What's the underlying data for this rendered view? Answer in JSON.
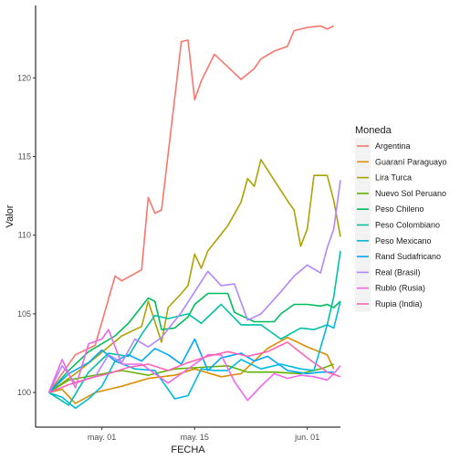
{
  "chart_data": {
    "type": "line",
    "xlabel": "FECHA",
    "ylabel": "Valor",
    "x_range": [
      "2020-04-21",
      "2020-06-06"
    ],
    "ylim": [
      97.8,
      124.6
    ],
    "y_ticks": [
      100,
      105,
      110,
      115,
      120
    ],
    "x_ticks": [
      {
        "date": "2020-05-01",
        "label": "may. 01"
      },
      {
        "date": "2020-05-15",
        "label": "may. 15"
      },
      {
        "date": "2020-06-01",
        "label": "jun. 01"
      }
    ],
    "grid": false,
    "legend": {
      "title": "Moneda",
      "position": "right"
    },
    "series": [
      {
        "name": "Argentina",
        "color": "#F8766D",
        "points": [
          [
            "2020-04-23",
            100.0
          ],
          [
            "2020-04-27",
            102.4
          ],
          [
            "2020-04-30",
            103.0
          ],
          [
            "2020-05-03",
            107.4
          ],
          [
            "2020-05-04",
            107.1
          ],
          [
            "2020-05-07",
            107.8
          ],
          [
            "2020-05-08",
            112.4
          ],
          [
            "2020-05-09",
            111.4
          ],
          [
            "2020-05-10",
            111.6
          ],
          [
            "2020-05-13",
            122.3
          ],
          [
            "2020-05-14",
            122.4
          ],
          [
            "2020-05-15",
            118.6
          ],
          [
            "2020-05-16",
            119.8
          ],
          [
            "2020-05-18",
            121.5
          ],
          [
            "2020-05-22",
            119.9
          ],
          [
            "2020-05-24",
            120.6
          ],
          [
            "2020-05-25",
            121.2
          ],
          [
            "2020-05-27",
            121.7
          ],
          [
            "2020-05-29",
            122.0
          ],
          [
            "2020-05-30",
            123.0
          ],
          [
            "2020-06-01",
            123.2
          ],
          [
            "2020-06-03",
            123.3
          ],
          [
            "2020-06-04",
            123.1
          ],
          [
            "2020-06-05",
            123.3
          ]
        ]
      },
      {
        "name": "Guaraní Paraguayo",
        "color": "#DB8E00",
        "points": [
          [
            "2020-04-23",
            100.0
          ],
          [
            "2020-04-25",
            100.2
          ],
          [
            "2020-04-27",
            99.3
          ],
          [
            "2020-04-30",
            100.0
          ],
          [
            "2020-05-04",
            100.4
          ],
          [
            "2020-05-08",
            100.9
          ],
          [
            "2020-05-12",
            101.1
          ],
          [
            "2020-05-15",
            101.5
          ],
          [
            "2020-05-19",
            101.0
          ],
          [
            "2020-05-22",
            101.2
          ],
          [
            "2020-05-26",
            102.8
          ],
          [
            "2020-05-29",
            103.5
          ],
          [
            "2020-06-01",
            102.9
          ],
          [
            "2020-06-04",
            102.4
          ],
          [
            "2020-06-05",
            101.5
          ]
        ]
      },
      {
        "name": "Lira Turca",
        "color": "#AEA200",
        "points": [
          [
            "2020-04-23",
            100.0
          ],
          [
            "2020-04-27",
            101.2
          ],
          [
            "2020-04-30",
            102.2
          ],
          [
            "2020-05-04",
            103.6
          ],
          [
            "2020-05-07",
            104.2
          ],
          [
            "2020-05-08",
            105.8
          ],
          [
            "2020-05-10",
            103.2
          ],
          [
            "2020-05-11",
            105.4
          ],
          [
            "2020-05-13",
            106.3
          ],
          [
            "2020-05-14",
            106.8
          ],
          [
            "2020-05-15",
            108.8
          ],
          [
            "2020-05-16",
            107.9
          ],
          [
            "2020-05-17",
            109.0
          ],
          [
            "2020-05-20",
            110.6
          ],
          [
            "2020-05-22",
            112.1
          ],
          [
            "2020-05-23",
            113.6
          ],
          [
            "2020-05-24",
            113.1
          ],
          [
            "2020-05-25",
            114.8
          ],
          [
            "2020-05-29",
            112.2
          ],
          [
            "2020-05-30",
            111.6
          ],
          [
            "2020-05-31",
            109.3
          ],
          [
            "2020-06-01",
            110.4
          ],
          [
            "2020-06-02",
            113.8
          ],
          [
            "2020-06-04",
            113.8
          ],
          [
            "2020-06-05",
            112.2
          ],
          [
            "2020-06-06",
            109.9
          ]
        ]
      },
      {
        "name": "Nuevo Sol Peruano",
        "color": "#64B200",
        "points": [
          [
            "2020-04-23",
            100.0
          ],
          [
            "2020-04-26",
            100.8
          ],
          [
            "2020-04-30",
            101.1
          ],
          [
            "2020-05-04",
            101.4
          ],
          [
            "2020-05-08",
            101.1
          ],
          [
            "2020-05-12",
            101.5
          ],
          [
            "2020-05-16",
            101.6
          ],
          [
            "2020-05-20",
            101.7
          ],
          [
            "2020-05-23",
            101.3
          ],
          [
            "2020-05-27",
            101.3
          ],
          [
            "2020-05-31",
            101.2
          ],
          [
            "2020-06-03",
            101.5
          ],
          [
            "2020-06-05",
            101.8
          ]
        ]
      },
      {
        "name": "Peso Chileno",
        "color": "#00BD5C",
        "points": [
          [
            "2020-04-23",
            100.0
          ],
          [
            "2020-04-26",
            101.4
          ],
          [
            "2020-04-29",
            102.6
          ],
          [
            "2020-05-03",
            103.6
          ],
          [
            "2020-05-05",
            104.4
          ],
          [
            "2020-05-08",
            106.0
          ],
          [
            "2020-05-09",
            105.8
          ],
          [
            "2020-05-10",
            104.0
          ],
          [
            "2020-05-12",
            104.1
          ],
          [
            "2020-05-14",
            104.8
          ],
          [
            "2020-05-15",
            105.6
          ],
          [
            "2020-05-17",
            106.3
          ],
          [
            "2020-05-20",
            106.3
          ],
          [
            "2020-05-21",
            105.1
          ],
          [
            "2020-05-24",
            104.5
          ],
          [
            "2020-05-27",
            104.5
          ],
          [
            "2020-05-28",
            105.0
          ],
          [
            "2020-05-30",
            105.6
          ],
          [
            "2020-06-01",
            105.6
          ],
          [
            "2020-06-03",
            105.5
          ],
          [
            "2020-06-04",
            105.6
          ],
          [
            "2020-06-05",
            105.4
          ],
          [
            "2020-06-06",
            105.8
          ]
        ]
      },
      {
        "name": "Peso Colombiano",
        "color": "#00C1A7",
        "points": [
          [
            "2020-04-23",
            100.0
          ],
          [
            "2020-04-26",
            99.2
          ],
          [
            "2020-04-29",
            101.3
          ],
          [
            "2020-05-02",
            102.5
          ],
          [
            "2020-05-05",
            102.3
          ],
          [
            "2020-05-07",
            103.7
          ],
          [
            "2020-05-09",
            104.9
          ],
          [
            "2020-05-11",
            104.7
          ],
          [
            "2020-05-14",
            105.0
          ],
          [
            "2020-05-16",
            104.4
          ],
          [
            "2020-05-19",
            105.6
          ],
          [
            "2020-05-22",
            104.3
          ],
          [
            "2020-05-25",
            104.3
          ],
          [
            "2020-05-28",
            103.4
          ],
          [
            "2020-05-31",
            104.1
          ],
          [
            "2020-06-02",
            104.0
          ],
          [
            "2020-06-04",
            104.3
          ],
          [
            "2020-06-05",
            106.1
          ],
          [
            "2020-06-06",
            109.0
          ]
        ]
      },
      {
        "name": "Peso Mexicano",
        "color": "#00BADE",
        "points": [
          [
            "2020-04-23",
            100.0
          ],
          [
            "2020-04-25",
            99.7
          ],
          [
            "2020-04-27",
            99.0
          ],
          [
            "2020-04-29",
            99.6
          ],
          [
            "2020-05-01",
            100.4
          ],
          [
            "2020-05-03",
            102.0
          ],
          [
            "2020-05-06",
            101.5
          ],
          [
            "2020-05-09",
            101.4
          ],
          [
            "2020-05-12",
            99.6
          ],
          [
            "2020-05-14",
            99.8
          ],
          [
            "2020-05-16",
            101.5
          ],
          [
            "2020-05-18",
            101.4
          ],
          [
            "2020-05-20",
            101.4
          ],
          [
            "2020-05-22",
            102.1
          ],
          [
            "2020-05-25",
            101.5
          ],
          [
            "2020-05-28",
            101.8
          ],
          [
            "2020-05-31",
            101.5
          ],
          [
            "2020-06-02",
            101.4
          ],
          [
            "2020-06-04",
            104.3
          ],
          [
            "2020-06-05",
            104.1
          ],
          [
            "2020-06-06",
            105.8
          ]
        ]
      },
      {
        "name": "Rand Sudafricano",
        "color": "#00A6FF",
        "points": [
          [
            "2020-04-23",
            100.0
          ],
          [
            "2020-04-26",
            101.2
          ],
          [
            "2020-04-29",
            101.9
          ],
          [
            "2020-05-01",
            102.7
          ],
          [
            "2020-05-03",
            102.0
          ],
          [
            "2020-05-05",
            102.4
          ],
          [
            "2020-05-07",
            102.0
          ],
          [
            "2020-05-09",
            102.8
          ],
          [
            "2020-05-11",
            102.4
          ],
          [
            "2020-05-13",
            101.8
          ],
          [
            "2020-05-15",
            103.4
          ],
          [
            "2020-05-17",
            101.4
          ],
          [
            "2020-05-19",
            102.2
          ],
          [
            "2020-05-22",
            102.5
          ],
          [
            "2020-05-24",
            102.0
          ],
          [
            "2020-05-26",
            102.3
          ],
          [
            "2020-05-29",
            101.4
          ],
          [
            "2020-06-01",
            101.2
          ],
          [
            "2020-06-03",
            101.3
          ],
          [
            "2020-06-05",
            101.3
          ]
        ]
      },
      {
        "name": "Real (Brasil)",
        "color": "#B385FF",
        "points": [
          [
            "2020-04-23",
            100.0
          ],
          [
            "2020-04-25",
            101.7
          ],
          [
            "2020-04-27",
            100.6
          ],
          [
            "2020-04-30",
            101.0
          ],
          [
            "2020-05-02",
            102.4
          ],
          [
            "2020-05-04",
            101.9
          ],
          [
            "2020-05-06",
            103.4
          ],
          [
            "2020-05-08",
            102.9
          ],
          [
            "2020-05-10",
            103.5
          ],
          [
            "2020-05-13",
            105.1
          ],
          [
            "2020-05-15",
            106.4
          ],
          [
            "2020-05-17",
            107.7
          ],
          [
            "2020-05-19",
            106.8
          ],
          [
            "2020-05-21",
            106.9
          ],
          [
            "2020-05-23",
            104.6
          ],
          [
            "2020-05-25",
            105.0
          ],
          [
            "2020-05-28",
            106.4
          ],
          [
            "2020-05-30",
            107.4
          ],
          [
            "2020-06-01",
            108.1
          ],
          [
            "2020-06-03",
            107.6
          ],
          [
            "2020-06-04",
            109.2
          ],
          [
            "2020-06-05",
            110.4
          ],
          [
            "2020-06-06",
            113.5
          ]
        ]
      },
      {
        "name": "Rublo (Rusia)",
        "color": "#EF67EB",
        "points": [
          [
            "2020-04-23",
            100.0
          ],
          [
            "2020-04-25",
            102.1
          ],
          [
            "2020-04-27",
            100.3
          ],
          [
            "2020-04-29",
            103.1
          ],
          [
            "2020-05-01",
            103.4
          ],
          [
            "2020-05-02",
            104.0
          ],
          [
            "2020-05-04",
            101.8
          ],
          [
            "2020-05-07",
            101.8
          ],
          [
            "2020-05-09",
            101.2
          ],
          [
            "2020-05-11",
            100.6
          ],
          [
            "2020-05-13",
            101.2
          ],
          [
            "2020-05-15",
            101.8
          ],
          [
            "2020-05-17",
            102.4
          ],
          [
            "2020-05-19",
            102.4
          ],
          [
            "2020-05-21",
            100.7
          ],
          [
            "2020-05-23",
            99.5
          ],
          [
            "2020-05-25",
            100.4
          ],
          [
            "2020-05-27",
            101.2
          ],
          [
            "2020-05-29",
            100.9
          ],
          [
            "2020-05-31",
            101.1
          ],
          [
            "2020-06-02",
            101.0
          ],
          [
            "2020-06-04",
            100.8
          ],
          [
            "2020-06-05",
            101.2
          ],
          [
            "2020-06-06",
            101.7
          ]
        ]
      },
      {
        "name": "Rupia (India)",
        "color": "#FF63B6",
        "points": [
          [
            "2020-04-23",
            100.0
          ],
          [
            "2020-04-26",
            100.5
          ],
          [
            "2020-04-29",
            100.9
          ],
          [
            "2020-05-02",
            101.2
          ],
          [
            "2020-05-05",
            101.6
          ],
          [
            "2020-05-08",
            101.8
          ],
          [
            "2020-05-11",
            101.4
          ],
          [
            "2020-05-14",
            101.9
          ],
          [
            "2020-05-17",
            102.3
          ],
          [
            "2020-05-20",
            102.6
          ],
          [
            "2020-05-23",
            102.3
          ],
          [
            "2020-05-26",
            102.6
          ],
          [
            "2020-05-29",
            103.2
          ],
          [
            "2020-06-01",
            102.2
          ],
          [
            "2020-06-04",
            101.3
          ],
          [
            "2020-06-06",
            101.0
          ]
        ]
      }
    ]
  }
}
